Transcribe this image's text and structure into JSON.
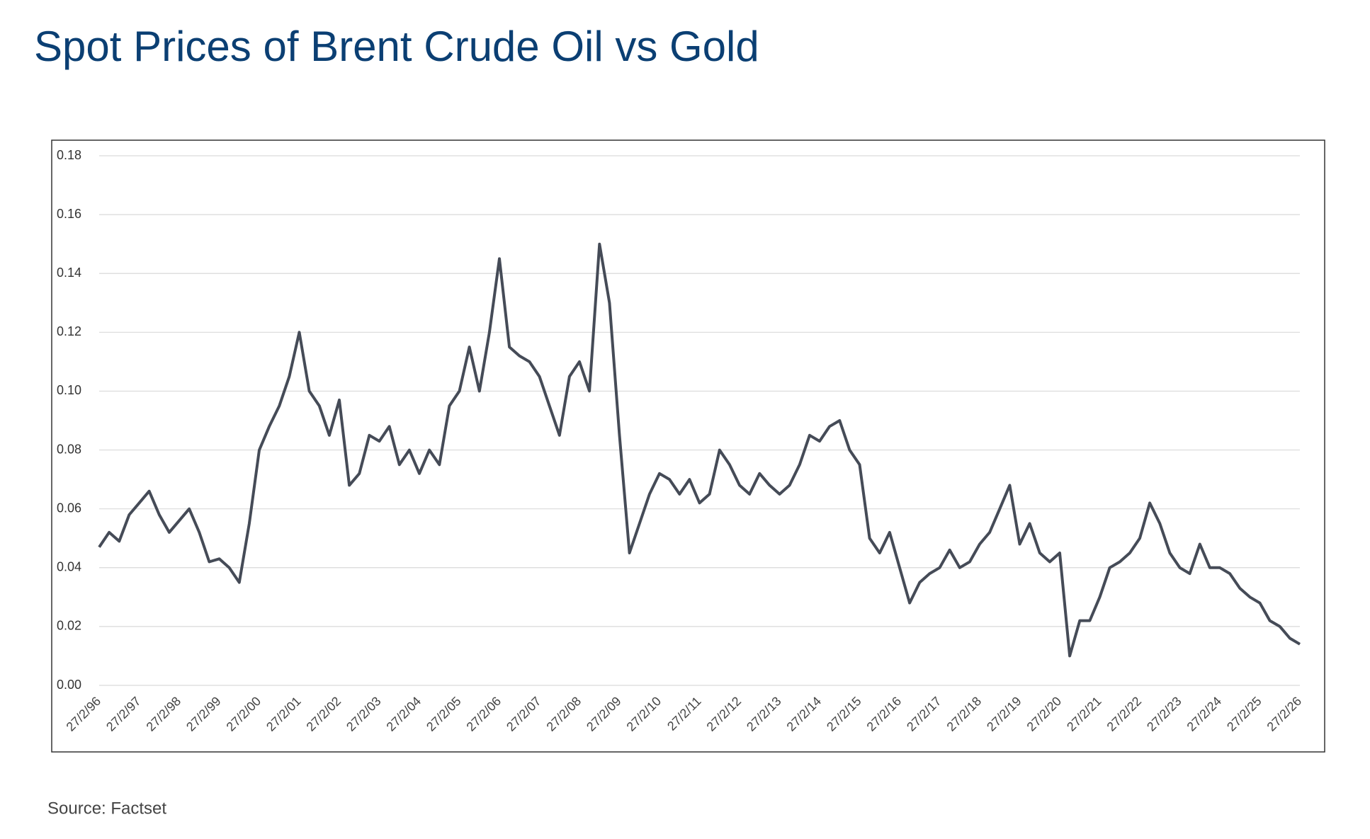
{
  "chart_data": {
    "type": "line",
    "title": "Spot Prices of Brent Crude Oil vs Gold",
    "source": "Source: Factset",
    "categories": [
      "27/2/96",
      null,
      null,
      null,
      "27/2/97",
      null,
      null,
      null,
      "27/2/98",
      null,
      null,
      null,
      "27/2/99",
      null,
      null,
      null,
      "27/2/00",
      null,
      null,
      null,
      "27/2/01",
      null,
      null,
      null,
      "27/2/02",
      null,
      null,
      null,
      "27/2/03",
      null,
      null,
      null,
      "27/2/04",
      null,
      null,
      null,
      "27/2/05",
      null,
      null,
      null,
      "27/2/06",
      null,
      null,
      null,
      "27/2/07",
      null,
      null,
      null,
      "27/2/08",
      null,
      null,
      null,
      "27/2/09",
      null,
      null,
      null,
      "27/2/10",
      null,
      null,
      null,
      "27/2/11",
      null,
      null,
      null,
      "27/2/12",
      null,
      null,
      null,
      "27/2/13",
      null,
      null,
      null,
      "27/2/14",
      null,
      null,
      null,
      "27/2/15",
      null,
      null,
      null,
      "27/2/16",
      null,
      null,
      null,
      "27/2/17",
      null,
      null,
      null,
      "27/2/18",
      null,
      null,
      null,
      "27/2/19",
      null,
      null,
      null,
      "27/2/20",
      null,
      null,
      null,
      "27/2/21",
      null,
      null,
      null,
      "27/2/22",
      null,
      null,
      null,
      "27/2/23",
      null,
      null,
      null,
      "27/2/24",
      null,
      null,
      null,
      "27/2/25",
      null,
      null,
      null,
      "27/2/26"
    ],
    "series": [
      {
        "color": "#454b57",
        "values": [
          0.047,
          0.052,
          0.049,
          0.058,
          0.062,
          0.066,
          0.058,
          0.052,
          0.056,
          0.06,
          0.052,
          0.042,
          0.043,
          0.04,
          0.035,
          0.055,
          0.08,
          0.088,
          0.095,
          0.105,
          0.12,
          0.1,
          0.095,
          0.085,
          0.097,
          0.068,
          0.072,
          0.085,
          0.083,
          0.088,
          0.075,
          0.08,
          0.072,
          0.08,
          0.075,
          0.095,
          0.1,
          0.115,
          0.1,
          0.12,
          0.145,
          0.115,
          0.112,
          0.11,
          0.105,
          0.095,
          0.085,
          0.105,
          0.11,
          0.1,
          0.15,
          0.13,
          0.085,
          0.045,
          0.055,
          0.065,
          0.072,
          0.07,
          0.065,
          0.07,
          0.062,
          0.065,
          0.08,
          0.075,
          0.068,
          0.065,
          0.072,
          0.068,
          0.065,
          0.068,
          0.075,
          0.085,
          0.083,
          0.088,
          0.09,
          0.08,
          0.075,
          0.05,
          0.045,
          0.052,
          0.04,
          0.028,
          0.035,
          0.038,
          0.04,
          0.046,
          0.04,
          0.042,
          0.048,
          0.052,
          0.06,
          0.068,
          0.048,
          0.055,
          0.045,
          0.042,
          0.045,
          0.01,
          0.022,
          0.022,
          0.03,
          0.04,
          0.042,
          0.045,
          0.05,
          0.062,
          0.055,
          0.045,
          0.04,
          0.038,
          0.048,
          0.04,
          0.04,
          0.038,
          0.033,
          0.03,
          0.028,
          0.022,
          0.02,
          0.016,
          0.014
        ]
      }
    ],
    "ylim": [
      0,
      0.18
    ],
    "yticks": [
      {
        "value": 0,
        "label": "0.00"
      },
      0.02,
      0.04,
      0.06,
      0.08,
      {
        "value": 0.1,
        "label": "0.10"
      },
      0.12,
      0.14,
      0.16,
      0.18
    ],
    "grid": true
  }
}
